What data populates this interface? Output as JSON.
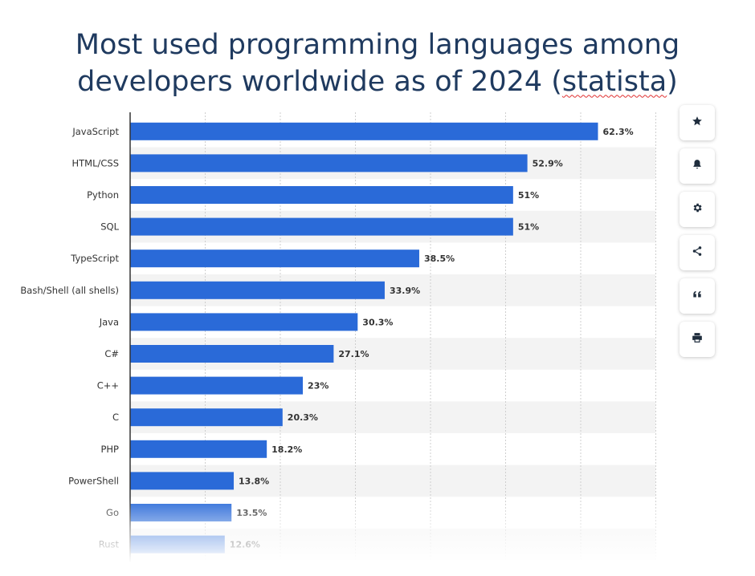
{
  "title": {
    "line1": "Most used programming languages among",
    "line2_prefix": "developers worldwide as of 2024 (",
    "line2_source": "statista",
    "line2_suffix": ")"
  },
  "toolbar": {
    "icons": [
      "star-icon",
      "bell-icon",
      "gear-icon",
      "share-icon",
      "quote-icon",
      "print-icon"
    ]
  },
  "colors": {
    "bar": "#2a6ad8",
    "stripe": "#f3f3f3",
    "grid": "#cfcfcf",
    "axis": "#333333"
  },
  "chart_data": {
    "type": "bar",
    "orientation": "horizontal",
    "title": "Most used programming languages among developers worldwide as of 2024 (statista)",
    "categories": [
      "JavaScript",
      "HTML/CSS",
      "Python",
      "SQL",
      "TypeScript",
      "Bash/Shell (all shells)",
      "Java",
      "C#",
      "C++",
      "C",
      "PHP",
      "PowerShell",
      "Go",
      "Rust"
    ],
    "values": [
      62.3,
      52.9,
      51,
      51,
      38.5,
      33.9,
      30.3,
      27.1,
      23,
      20.3,
      18.2,
      13.8,
      13.5,
      12.6
    ],
    "value_labels": [
      "62.3%",
      "52.9%",
      "51%",
      "51%",
      "38.5%",
      "33.9%",
      "30.3%",
      "27.1%",
      "23%",
      "20.3%",
      "18.2%",
      "13.8%",
      "13.5%",
      "12.6%"
    ],
    "unit": "%",
    "xlim": [
      0,
      70
    ],
    "grid": true,
    "legend": "none"
  }
}
